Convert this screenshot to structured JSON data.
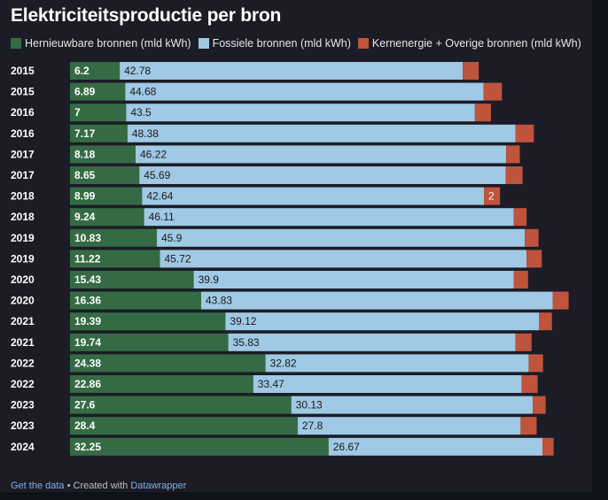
{
  "title": "Elektriciteitsproductie per bron",
  "legend": [
    {
      "label": "Hernieuwbare bronnen (mld kWh)",
      "color": "#356b44"
    },
    {
      "label": "Fossiele bronnen (mld kWh)",
      "color": "#9fc9e4"
    },
    {
      "label": "Kernenergie + Overige bronnen (mld kWh)",
      "color": "#c0533c"
    }
  ],
  "footer": {
    "get_data": "Get the data",
    "separator": " • Created with ",
    "tool": "Datawrapper"
  },
  "chart_data": {
    "type": "bar",
    "orientation": "horizontal",
    "stacked": true,
    "xlim": [
      0,
      65
    ],
    "categories": [
      "2015",
      "2015",
      "2016",
      "2016",
      "2017",
      "2017",
      "2018",
      "2018",
      "2019",
      "2019",
      "2020",
      "2020",
      "2021",
      "2021",
      "2022",
      "2022",
      "2023",
      "2023",
      "2024"
    ],
    "series": [
      {
        "name": "Hernieuwbare bronnen (mld kWh)",
        "color": "#356b44",
        "values": [
          6.2,
          6.89,
          7,
          7.17,
          8.18,
          8.65,
          8.99,
          9.24,
          10.83,
          11.22,
          15.43,
          16.36,
          19.39,
          19.74,
          24.38,
          22.86,
          27.6,
          28.4,
          32.25
        ],
        "labels": [
          "6.2",
          "6.89",
          "7",
          "7.17",
          "8.18",
          "8.65",
          "8.99",
          "9.24",
          "10.83",
          "11.22",
          "15.43",
          "16.36",
          "19.39",
          "19.74",
          "24.38",
          "22.86",
          "27.6",
          "28.4",
          "32.25"
        ]
      },
      {
        "name": "Fossiele bronnen (mld kWh)",
        "color": "#9fc9e4",
        "values": [
          42.78,
          44.68,
          43.5,
          48.38,
          46.22,
          45.69,
          42.64,
          46.11,
          45.9,
          45.72,
          39.9,
          43.83,
          39.12,
          35.83,
          32.82,
          33.47,
          30.13,
          27.8,
          26.67
        ],
        "labels": [
          "42.78",
          "44.68",
          "43.5",
          "48.38",
          "46.22",
          "45.69",
          "42.64",
          "46.11",
          "45.9",
          "45.72",
          "39.9",
          "43.83",
          "39.12",
          "35.83",
          "32.82",
          "33.47",
          "30.13",
          "27.8",
          "26.67"
        ]
      },
      {
        "name": "Kernenergie + Overige bronnen (mld kWh)",
        "color": "#c0533c",
        "values": [
          2.0,
          2.3,
          2.0,
          2.3,
          1.7,
          2.1,
          2.0,
          1.6,
          1.7,
          1.9,
          1.8,
          2.0,
          1.6,
          2.0,
          1.8,
          2.0,
          1.6,
          2.0,
          1.4
        ],
        "labels": [
          "",
          "",
          "",
          "",
          "",
          "",
          "2",
          "",
          "",
          "",
          "",
          "",
          "",
          "",
          "",
          "",
          "",
          "",
          ""
        ]
      }
    ]
  }
}
